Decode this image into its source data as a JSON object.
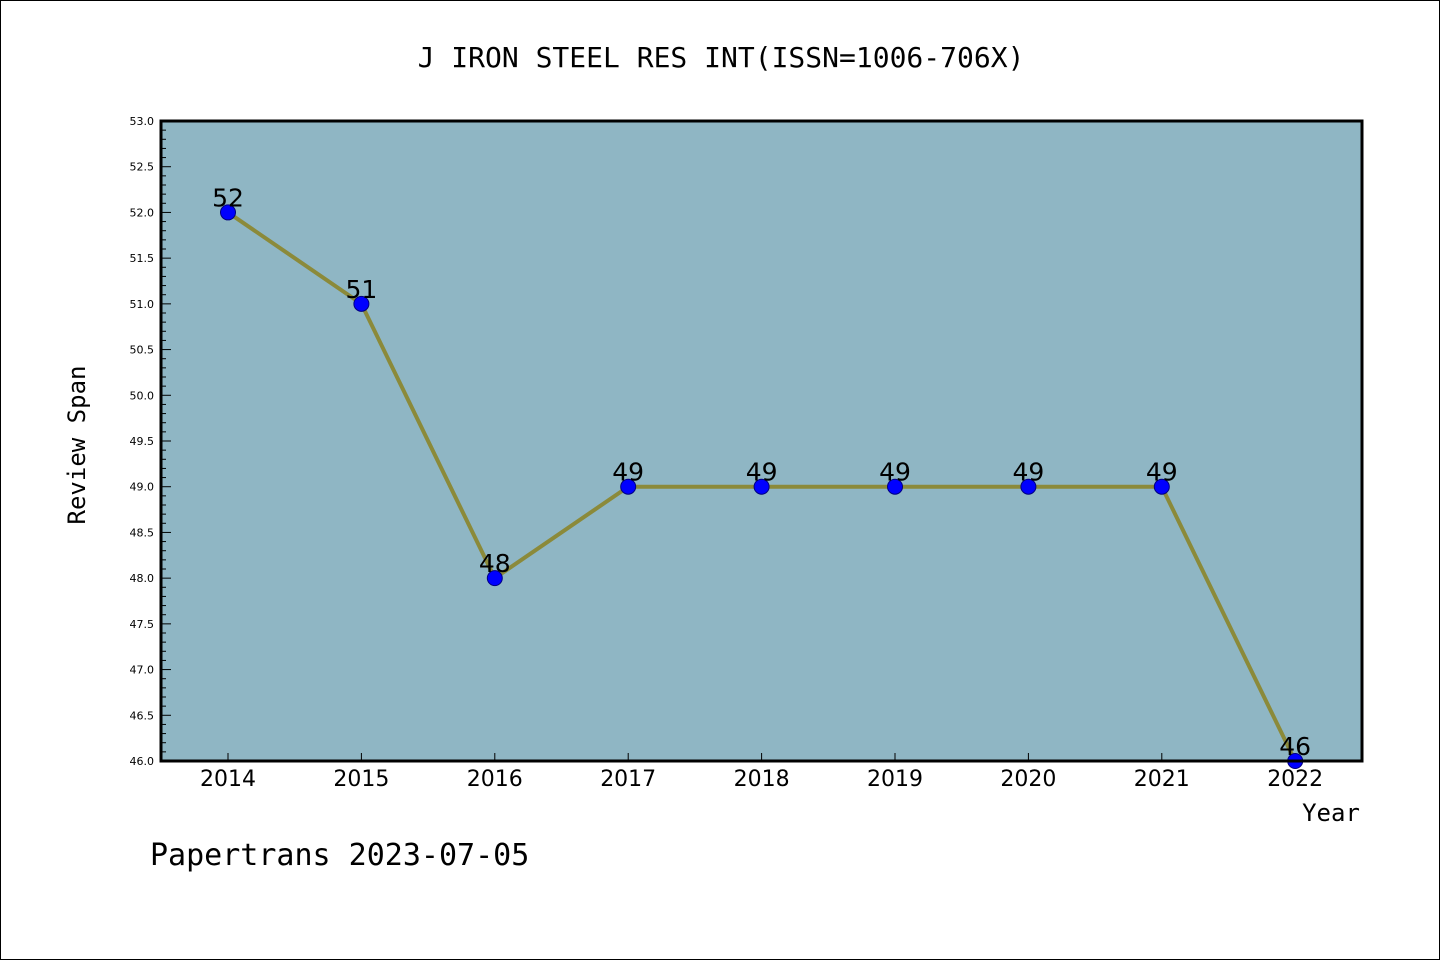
{
  "chart_data": {
    "type": "line",
    "title": "J IRON STEEL RES INT(ISSN=1006-706X)",
    "xlabel": "Year",
    "ylabel": "Review Span",
    "categories": [
      "2014",
      "2015",
      "2016",
      "2017",
      "2018",
      "2019",
      "2020",
      "2021",
      "2022"
    ],
    "series": [
      {
        "values": [
          52,
          51,
          48,
          49,
          49,
          49,
          49,
          49,
          46
        ]
      }
    ],
    "ylim": [
      46.0,
      53.0
    ],
    "yticks": [
      "46.0",
      "46.5",
      "47.0",
      "47.5",
      "48.0",
      "48.5",
      "49.0",
      "49.5",
      "50.0",
      "50.5",
      "51.0",
      "51.5",
      "52.0",
      "52.5",
      "53.0"
    ],
    "grid": false,
    "legend": "none",
    "data_labels": true
  },
  "footer_text": "Papertrans 2023-07-05",
  "colors": {
    "plot_background": "#8fb6c4",
    "line": "#8b8a3a",
    "marker_fill": "#0000ff",
    "marker_edge": "#000080"
  }
}
